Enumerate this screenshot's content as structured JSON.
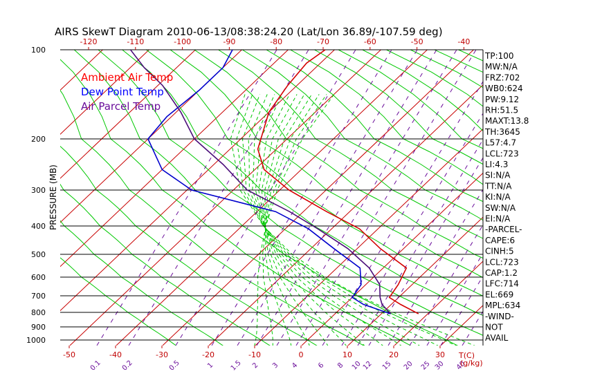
{
  "chart_data": {
    "type": "line",
    "title": "AIRS SkewT Diagram 2010-06-13/08:38:24.20 (Lat/Lon 36.89/-107.59 deg)",
    "ylabel": "PRESSURE (MB)",
    "x_unit_label": "T(C)",
    "mixing_unit_label": "(g/kg)",
    "pressure_ticks": [
      100,
      200,
      300,
      400,
      500,
      600,
      700,
      800,
      900,
      1000
    ],
    "top_temp_ticks": [
      -120,
      -110,
      -100,
      -90,
      -80,
      -70,
      -60,
      -50,
      -40
    ],
    "bottom_temp_ticks": [
      -50,
      -40,
      -30,
      -20,
      -10,
      0,
      10,
      20,
      30
    ],
    "mixing_ratio_labels": [
      "0.1",
      "0.2",
      "0.5",
      "1",
      "1.5",
      "2",
      "3",
      "4",
      "6",
      "8",
      "10",
      "12",
      "15",
      "20",
      "25",
      "30",
      "40"
    ],
    "legend": [
      {
        "label": "Ambient Air Temp",
        "color": "#ff0000"
      },
      {
        "label": "Dew Point Temp",
        "color": "#0000ff"
      },
      {
        "label": "Air Parcel Temp",
        "color": "#6a0d9a"
      }
    ],
    "series": [
      {
        "name": "Ambient Air Temp",
        "color": "#d40000",
        "points": [
          [
            810,
            18
          ],
          [
            752,
            12
          ],
          [
            710,
            8
          ],
          [
            640,
            7
          ],
          [
            560,
            5
          ],
          [
            480,
            -5
          ],
          [
            410,
            -14
          ],
          [
            360,
            -25
          ],
          [
            300,
            -38
          ],
          [
            260,
            -48
          ],
          [
            220,
            -54
          ],
          [
            170,
            -60
          ],
          [
            140,
            -62
          ],
          [
            115,
            -63
          ],
          [
            100,
            -62
          ]
        ]
      },
      {
        "name": "Dew Point Temp",
        "color": "#0000cc",
        "points": [
          [
            810,
            12
          ],
          [
            752,
            4
          ],
          [
            710,
            0
          ],
          [
            640,
            -1
          ],
          [
            560,
            -5
          ],
          [
            480,
            -15
          ],
          [
            410,
            -25
          ],
          [
            360,
            -36
          ],
          [
            300,
            -59
          ],
          [
            260,
            -70
          ],
          [
            200,
            -80
          ],
          [
            175,
            -81
          ],
          [
            145,
            -80
          ],
          [
            120,
            -80
          ],
          [
            100,
            -82
          ]
        ]
      },
      {
        "name": "Air Parcel Temp",
        "color": "#4b0e7a",
        "points": [
          [
            810,
            12
          ],
          [
            752,
            8
          ],
          [
            710,
            6
          ],
          [
            640,
            3
          ],
          [
            560,
            -3
          ],
          [
            480,
            -12
          ],
          [
            410,
            -23
          ],
          [
            360,
            -33
          ],
          [
            300,
            -47
          ],
          [
            250,
            -58
          ],
          [
            200,
            -70
          ],
          [
            170,
            -79
          ],
          [
            140,
            -89
          ],
          [
            120,
            -97
          ],
          [
            100,
            -104
          ]
        ]
      }
    ],
    "stats": [
      "TP:100",
      "MW:N/A",
      "FRZ:702",
      "WB0:624",
      "PW:9.12",
      "RH:51.5",
      "MAXT:13.8",
      "TH:3645",
      "L57:4.7",
      "LCL:723",
      "LI:4.3",
      "SI:N/A",
      "TT:N/A",
      "KI:N/A",
      "SW:N/A",
      "EI:N/A",
      "-PARCEL-",
      "CAPE:6",
      "CINH:5",
      "LCL:723",
      "CAP:1.2",
      "LFC:714",
      "EL:669",
      "MPL:634",
      "-WIND-",
      "NOT",
      "AVAIL"
    ],
    "colors": {
      "dry_adiabat": "#00c800",
      "moist_adiabat": "#00c800",
      "isotherm": "#c80000",
      "mixing_ratio": "#6a0d9a",
      "isobar": "#000000"
    }
  }
}
